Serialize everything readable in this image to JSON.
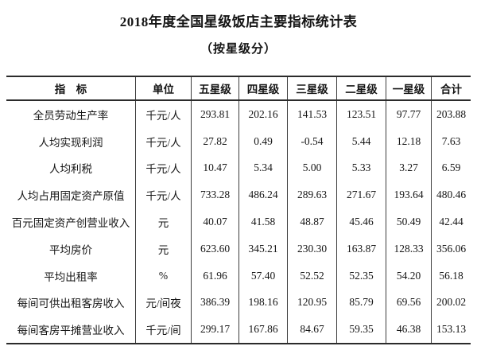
{
  "page": {
    "title": "2018年度全国星级饭店主要指标统计表",
    "subtitle": "（按星级分）"
  },
  "table": {
    "headers": [
      "指　标",
      "单位",
      "五星级",
      "四星级",
      "三星级",
      "二星级",
      "一星级",
      "合计"
    ],
    "rows": [
      [
        "全员劳动生产率",
        "千元/人",
        "293.81",
        "202.16",
        "141.53",
        "123.51",
        "97.77",
        "203.88"
      ],
      [
        "人均实现利润",
        "千元/人",
        "27.82",
        "0.49",
        "-0.54",
        "5.44",
        "12.18",
        "7.63"
      ],
      [
        "人均利税",
        "千元/人",
        "10.47",
        "5.34",
        "5.00",
        "5.33",
        "3.27",
        "6.59"
      ],
      [
        "人均占用固定资产原值",
        "千元/人",
        "733.28",
        "486.24",
        "289.63",
        "271.67",
        "193.64",
        "480.46"
      ],
      [
        "百元固定资产创营业收入",
        "元",
        "40.07",
        "41.58",
        "48.87",
        "45.46",
        "50.49",
        "42.44"
      ],
      [
        "平均房价",
        "元",
        "623.60",
        "345.21",
        "230.30",
        "163.87",
        "128.33",
        "356.06"
      ],
      [
        "平均出租率",
        "%",
        "61.96",
        "57.40",
        "52.52",
        "52.35",
        "54.20",
        "56.18"
      ],
      [
        "每间可供出租客房收入",
        "元/间夜",
        "386.39",
        "198.16",
        "120.95",
        "85.79",
        "69.56",
        "200.02"
      ],
      [
        "每间客房平摊营业收入",
        "千元/间",
        "299.17",
        "167.86",
        "84.67",
        "59.35",
        "46.38",
        "153.13"
      ]
    ]
  }
}
